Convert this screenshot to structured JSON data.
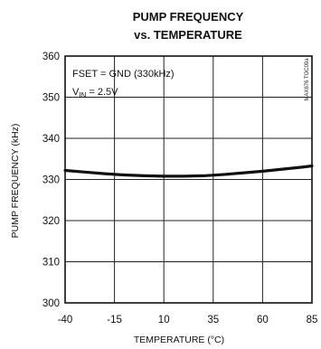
{
  "chart_data": {
    "type": "line",
    "title_line1": "PUMP FREQUENCY",
    "title_line2": "vs. TEMPERATURE",
    "xlabel": "TEMPERATURE (°C)",
    "ylabel": "PUMP FREQUENCY (kHz)",
    "xlim": [
      -40,
      85
    ],
    "ylim": [
      300,
      360
    ],
    "xticks": [
      -40,
      -15,
      10,
      35,
      60,
      85
    ],
    "yticks": [
      300,
      310,
      320,
      330,
      340,
      350,
      360
    ],
    "x_tick_labels": [
      "-40",
      "-15",
      "10",
      "35",
      "60",
      "85"
    ],
    "y_tick_labels": [
      "300",
      "310",
      "320",
      "330",
      "340",
      "350",
      "360"
    ],
    "grid": true,
    "annotations": {
      "line1": "FSET = GND (330kHz)",
      "line2_prefix": "V",
      "line2_sub": "IN",
      "line2_suffix": " = 2.5V"
    },
    "figure_code": "MAX676 TOC09a",
    "series": [
      {
        "x": [
          -40,
          -30,
          -20,
          -10,
          0,
          10,
          20,
          30,
          40,
          50,
          60,
          70,
          80,
          85
        ],
        "y": [
          332.2,
          331.8,
          331.4,
          331.1,
          330.9,
          330.8,
          330.8,
          330.9,
          331.2,
          331.6,
          332.0,
          332.5,
          333.0,
          333.3
        ]
      }
    ],
    "colors": {
      "curve": "#111111",
      "grid": "#222222",
      "background": "#ffffff"
    }
  }
}
